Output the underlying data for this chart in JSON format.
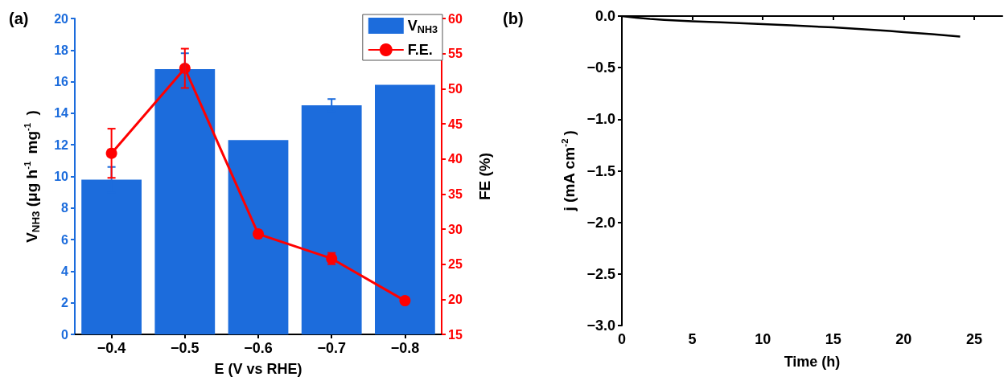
{
  "chart_data": [
    {
      "type": "bar",
      "title": "(a)",
      "xlabel": "E (V vs RHE)",
      "ylabel": "V$_{NH3}$ (μg h$^{-1}$ mg$^{-1}$ )",
      "y2label": "FE (%)",
      "categories": [
        "−0.4",
        "−0.5",
        "−0.6",
        "−0.7",
        "−0.8"
      ],
      "series": [
        {
          "name": "V$_{NH3}$",
          "color": "#1c6cdc",
          "values": [
            9.8,
            16.8,
            12.3,
            14.5,
            15.8
          ],
          "errors": [
            0.8,
            1.0,
            null,
            0.4,
            null
          ]
        },
        {
          "name": "F.E.",
          "type": "line",
          "axis": "y2",
          "color": "#ff0000",
          "values": [
            40.8,
            52.9,
            29.3,
            25.8,
            19.8
          ],
          "errors": [
            3.5,
            2.8,
            0.5,
            0.8,
            0.4
          ]
        }
      ],
      "ylim": [
        0,
        20
      ],
      "yticks": [
        0,
        2,
        4,
        6,
        8,
        10,
        12,
        14,
        16,
        18,
        20
      ],
      "y2lim": [
        15,
        60
      ],
      "y2ticks": [
        15,
        20,
        25,
        30,
        35,
        40,
        45,
        50,
        55,
        60
      ],
      "legend": "top right",
      "marker": "circle",
      "grid": false
    },
    {
      "type": "line",
      "title": "(b)",
      "xlabel": "Time (h)",
      "ylabel": "j (mA cm$^{-2}$)",
      "x": [
        0,
        1,
        2,
        3,
        5,
        7,
        10,
        12,
        15,
        17,
        19,
        20,
        21,
        22,
        24
      ],
      "series": [
        {
          "color": "#000000",
          "values": [
            0,
            -0.015,
            -0.028,
            -0.037,
            -0.05,
            -0.06,
            -0.077,
            -0.09,
            -0.11,
            -0.127,
            -0.145,
            -0.155,
            -0.165,
            -0.175,
            -0.198
          ]
        }
      ],
      "xlim": [
        0,
        27
      ],
      "xticks": [
        0,
        5,
        10,
        15,
        20,
        25
      ],
      "ylim": [
        -3,
        0
      ],
      "yticks": [
        {
          "value": -3,
          "label": "−3.0"
        },
        {
          "value": -2.5,
          "label": "−2.5"
        },
        {
          "value": -2,
          "label": "−2.0"
        },
        {
          "value": -1.5,
          "label": "−1.5"
        },
        {
          "value": -1,
          "label": "−1.0"
        },
        {
          "value": -0.5,
          "label": "−0.5"
        },
        {
          "value": 0,
          "label": "0.0"
        }
      ],
      "grid": false,
      "marker": "none"
    }
  ]
}
